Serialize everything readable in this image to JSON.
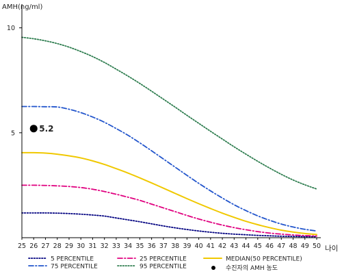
{
  "chart_data": {
    "type": "line",
    "ylabel": "AMH(ng/ml)",
    "xlabel": "나이",
    "x": [
      25,
      26,
      27,
      28,
      29,
      30,
      31,
      32,
      33,
      34,
      35,
      36,
      37,
      38,
      39,
      40,
      41,
      42,
      43,
      44,
      45,
      46,
      47,
      48,
      49,
      50
    ],
    "xlim": [
      25,
      50
    ],
    "ylim": [
      0,
      11
    ],
    "yticks": [
      5,
      10
    ],
    "grid": false,
    "legend_position": "bottom",
    "series": [
      {
        "name": "5 PERCENTILE",
        "color": "#000080",
        "style": "dotted",
        "values": [
          1.18,
          1.18,
          1.18,
          1.17,
          1.15,
          1.12,
          1.08,
          1.03,
          0.94,
          0.85,
          0.76,
          0.66,
          0.56,
          0.47,
          0.39,
          0.32,
          0.26,
          0.21,
          0.17,
          0.14,
          0.11,
          0.09,
          0.07,
          0.06,
          0.05,
          0.05
        ]
      },
      {
        "name": "25 PERCENTILE",
        "color": "#e0007f",
        "style": "dashdot",
        "values": [
          2.5,
          2.5,
          2.49,
          2.47,
          2.44,
          2.39,
          2.31,
          2.2,
          2.07,
          1.93,
          1.78,
          1.6,
          1.42,
          1.24,
          1.06,
          0.89,
          0.74,
          0.6,
          0.48,
          0.38,
          0.29,
          0.22,
          0.17,
          0.13,
          0.1,
          0.08
        ]
      },
      {
        "name": "MEDIAN(50 PERCENTILE)",
        "color": "#f0c800",
        "style": "solid",
        "values": [
          4.05,
          4.05,
          4.03,
          3.98,
          3.9,
          3.8,
          3.66,
          3.49,
          3.29,
          3.08,
          2.85,
          2.61,
          2.36,
          2.11,
          1.86,
          1.62,
          1.39,
          1.17,
          0.97,
          0.78,
          0.62,
          0.48,
          0.36,
          0.27,
          0.2,
          0.15
        ]
      },
      {
        "name": "75 PERCENTILE",
        "color": "#2255cc",
        "style": "dashdot",
        "values": [
          6.25,
          6.25,
          6.24,
          6.23,
          6.12,
          5.96,
          5.75,
          5.5,
          5.2,
          4.88,
          4.52,
          4.14,
          3.75,
          3.36,
          2.97,
          2.59,
          2.23,
          1.89,
          1.57,
          1.29,
          1.04,
          0.83,
          0.65,
          0.51,
          0.4,
          0.32
        ]
      },
      {
        "name": "95 PERCENTILE",
        "color": "#2e7d4f",
        "style": "dotted",
        "values": [
          9.55,
          9.48,
          9.38,
          9.25,
          9.08,
          8.87,
          8.63,
          8.35,
          8.03,
          7.7,
          7.35,
          6.98,
          6.6,
          6.22,
          5.83,
          5.45,
          5.07,
          4.7,
          4.33,
          3.98,
          3.64,
          3.32,
          3.02,
          2.75,
          2.52,
          2.32
        ]
      }
    ],
    "annotations": [
      {
        "name": "수진자의 AMH 농도",
        "x": 26,
        "y": 5.2,
        "label": "5.2",
        "color": "#000000"
      }
    ]
  }
}
